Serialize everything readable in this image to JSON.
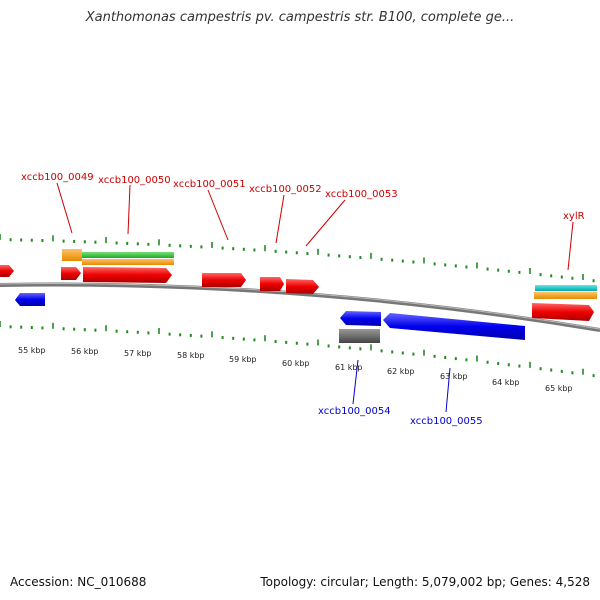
{
  "title": "Xanthomonas campestris pv. campestris str. B100, complete ge...",
  "footer": {
    "accession": "Accession: NC_010688",
    "summary": "Topology: circular; Length: 5,079,002 bp; Genes: 4,528"
  },
  "colors": {
    "forward_label": "#cc0000",
    "reverse_label": "#0000cc",
    "tick": "#228B22",
    "backbone": "#808080",
    "cds_red": "#ff0000",
    "cds_blue": "#0000ff",
    "orange": "#ff9900",
    "green": "#33cc33",
    "cyan": "#00cccc",
    "gray": "#666666"
  },
  "scale_labels": [
    "55 kbp",
    "56 kbp",
    "57 kbp",
    "58 kbp",
    "59 kbp",
    "60 kbp",
    "61 kbp",
    "62 kbp",
    "63 kbp",
    "64 kbp",
    "65 kbp"
  ],
  "gene_labels_forward": [
    "xccb100_0049",
    "xccb100_0050",
    "xccb100_0051",
    "xccb100_0052",
    "xccb100_0053",
    "xylR"
  ],
  "gene_labels_reverse": [
    "xccb100_0054",
    "xccb100_0055"
  ]
}
